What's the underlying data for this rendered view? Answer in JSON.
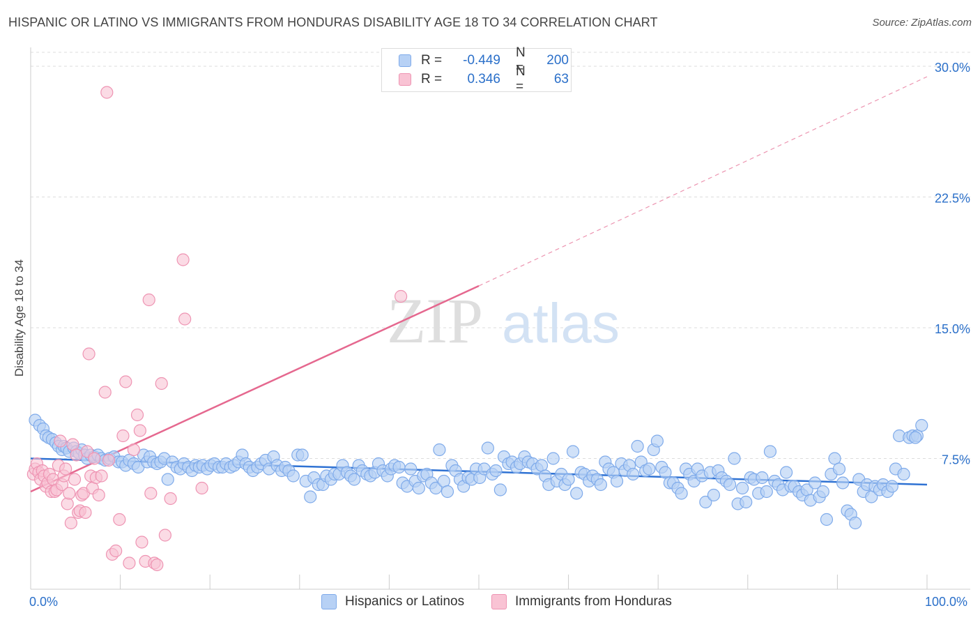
{
  "title": "HISPANIC OR LATINO VS IMMIGRANTS FROM HONDURAS DISABILITY AGE 18 TO 34 CORRELATION CHART",
  "source": "Source: ZipAtlas.com",
  "watermark": {
    "zip": "ZIP",
    "atlas": "atlas"
  },
  "legend": {
    "r_label": "R =",
    "n_label": "N =",
    "blue": {
      "r": "-0.449",
      "n": "200"
    },
    "pink": {
      "r": "0.346",
      "n": "63"
    }
  },
  "colors": {
    "blue_fill": "#b7d1f5",
    "blue_stroke": "#7eaaea",
    "blue_line": "#2f72d3",
    "pink_fill": "#f9c3d4",
    "pink_stroke": "#ee93b2",
    "pink_line": "#e5688f",
    "tick_label": "#2a6fc9",
    "grid": "#dddddd"
  },
  "chart_data": {
    "type": "scatter",
    "title": "HISPANIC OR LATINO VS IMMIGRANTS FROM HONDURAS DISABILITY AGE 18 TO 34 CORRELATION CHART",
    "xlabel": "",
    "ylabel": "Disability Age 18 to 34",
    "xlim": [
      0,
      100
    ],
    "ylim": [
      0,
      30.8
    ],
    "x_ticks": [
      0,
      10,
      20,
      30,
      40,
      50,
      60,
      70,
      80,
      90,
      100
    ],
    "x_tick_labels": {
      "min": "0.0%",
      "max": "100.0%"
    },
    "y_ticks": [
      7.5,
      15.0,
      22.5,
      30.0
    ],
    "y_tick_labels": [
      "7.5%",
      "15.0%",
      "22.5%",
      "30.0%"
    ],
    "grid": true,
    "legend_position": "top-center",
    "series": [
      {
        "name": "Hispanics or Latinos",
        "color": "#7eaaea",
        "trend": {
          "x0": 0,
          "y0": 7.5,
          "x1": 100,
          "y1": 6.0
        },
        "points": [
          [
            0.5,
            9.7
          ],
          [
            1.0,
            9.4
          ],
          [
            1.4,
            9.2
          ],
          [
            1.7,
            8.8
          ],
          [
            2.0,
            8.7
          ],
          [
            2.4,
            8.6
          ],
          [
            2.8,
            8.4
          ],
          [
            3.1,
            8.2
          ],
          [
            3.5,
            8.0
          ],
          [
            3.7,
            8.2
          ],
          [
            4.0,
            8.1
          ],
          [
            4.3,
            7.9
          ],
          [
            4.8,
            8.1
          ],
          [
            5.1,
            7.9
          ],
          [
            5.4,
            7.8
          ],
          [
            5.7,
            8.0
          ],
          [
            6.0,
            7.7
          ],
          [
            6.3,
            7.5
          ],
          [
            6.7,
            7.7
          ],
          [
            7.1,
            7.6
          ],
          [
            7.5,
            7.7
          ],
          [
            7.9,
            7.5
          ],
          [
            8.3,
            7.4
          ],
          [
            8.8,
            7.5
          ],
          [
            9.3,
            7.6
          ],
          [
            9.8,
            7.3
          ],
          [
            10.2,
            7.3
          ],
          [
            10.6,
            7.1
          ],
          [
            11.0,
            7.4
          ],
          [
            11.5,
            7.2
          ],
          [
            12.0,
            7.0
          ],
          [
            12.6,
            7.7
          ],
          [
            13.0,
            7.3
          ],
          [
            13.3,
            7.6
          ],
          [
            13.7,
            7.3
          ],
          [
            14.1,
            7.2
          ],
          [
            14.5,
            7.3
          ],
          [
            14.9,
            7.5
          ],
          [
            15.3,
            6.3
          ],
          [
            15.8,
            7.3
          ],
          [
            16.3,
            7.0
          ],
          [
            16.7,
            6.9
          ],
          [
            17.1,
            7.2
          ],
          [
            17.6,
            7.0
          ],
          [
            18.0,
            6.8
          ],
          [
            18.4,
            7.1
          ],
          [
            18.8,
            7.0
          ],
          [
            19.2,
            7.1
          ],
          [
            19.7,
            6.9
          ],
          [
            20.1,
            7.1
          ],
          [
            20.5,
            7.2
          ],
          [
            21.0,
            7.0
          ],
          [
            21.4,
            7.0
          ],
          [
            21.8,
            7.2
          ],
          [
            22.3,
            7.0
          ],
          [
            22.7,
            7.1
          ],
          [
            23.2,
            7.3
          ],
          [
            23.6,
            7.7
          ],
          [
            24.0,
            7.2
          ],
          [
            24.4,
            7.0
          ],
          [
            24.8,
            6.8
          ],
          [
            25.3,
            7.0
          ],
          [
            25.7,
            7.2
          ],
          [
            26.2,
            7.4
          ],
          [
            26.6,
            6.9
          ],
          [
            27.1,
            7.6
          ],
          [
            27.5,
            7.1
          ],
          [
            28.0,
            6.8
          ],
          [
            28.4,
            7.0
          ],
          [
            28.8,
            6.8
          ],
          [
            29.3,
            6.5
          ],
          [
            29.8,
            7.7
          ],
          [
            30.3,
            7.7
          ],
          [
            30.7,
            6.2
          ],
          [
            31.2,
            5.3
          ],
          [
            31.6,
            6.4
          ],
          [
            32.1,
            6.0
          ],
          [
            32.6,
            6.0
          ],
          [
            33.0,
            6.5
          ],
          [
            33.5,
            6.3
          ],
          [
            33.9,
            6.6
          ],
          [
            34.4,
            6.6
          ],
          [
            34.8,
            7.1
          ],
          [
            35.3,
            6.7
          ],
          [
            35.7,
            6.5
          ],
          [
            36.1,
            6.3
          ],
          [
            36.6,
            7.1
          ],
          [
            37.0,
            6.8
          ],
          [
            37.5,
            6.6
          ],
          [
            37.9,
            6.5
          ],
          [
            38.4,
            6.7
          ],
          [
            38.8,
            7.2
          ],
          [
            39.3,
            6.8
          ],
          [
            39.8,
            6.5
          ],
          [
            40.2,
            6.9
          ],
          [
            40.6,
            7.1
          ],
          [
            41.1,
            7.0
          ],
          [
            41.5,
            6.1
          ],
          [
            42.0,
            5.9
          ],
          [
            42.4,
            6.9
          ],
          [
            42.9,
            6.2
          ],
          [
            43.3,
            5.8
          ],
          [
            43.8,
            6.5
          ],
          [
            44.2,
            6.6
          ],
          [
            44.7,
            6.1
          ],
          [
            45.2,
            5.8
          ],
          [
            45.6,
            8.0
          ],
          [
            46.1,
            6.2
          ],
          [
            46.5,
            5.6
          ],
          [
            47.0,
            7.1
          ],
          [
            47.4,
            6.8
          ],
          [
            47.9,
            6.3
          ],
          [
            48.3,
            5.9
          ],
          [
            48.8,
            6.4
          ],
          [
            49.2,
            6.3
          ],
          [
            49.7,
            6.9
          ],
          [
            50.1,
            6.4
          ],
          [
            50.6,
            6.9
          ],
          [
            51.0,
            8.1
          ],
          [
            51.5,
            6.6
          ],
          [
            51.9,
            6.8
          ],
          [
            52.4,
            5.7
          ],
          [
            52.8,
            7.6
          ],
          [
            53.3,
            7.2
          ],
          [
            53.7,
            7.3
          ],
          [
            54.2,
            7.0
          ],
          [
            54.6,
            7.2
          ],
          [
            55.1,
            7.6
          ],
          [
            55.5,
            7.3
          ],
          [
            56.0,
            7.2
          ],
          [
            56.5,
            6.9
          ],
          [
            57.0,
            7.1
          ],
          [
            57.4,
            6.5
          ],
          [
            57.8,
            6.0
          ],
          [
            58.3,
            7.5
          ],
          [
            58.7,
            6.2
          ],
          [
            59.2,
            6.6
          ],
          [
            59.6,
            6.0
          ],
          [
            60.0,
            6.3
          ],
          [
            60.5,
            7.9
          ],
          [
            60.9,
            5.5
          ],
          [
            61.4,
            6.7
          ],
          [
            61.8,
            6.6
          ],
          [
            62.3,
            6.2
          ],
          [
            62.7,
            6.5
          ],
          [
            63.2,
            6.3
          ],
          [
            63.6,
            6.0
          ],
          [
            64.1,
            7.3
          ],
          [
            64.5,
            6.9
          ],
          [
            65.0,
            6.7
          ],
          [
            65.4,
            6.2
          ],
          [
            65.9,
            7.2
          ],
          [
            66.3,
            6.8
          ],
          [
            66.8,
            7.1
          ],
          [
            67.2,
            6.6
          ],
          [
            67.7,
            8.2
          ],
          [
            68.1,
            7.3
          ],
          [
            68.6,
            6.8
          ],
          [
            69.0,
            6.9
          ],
          [
            69.5,
            8.0
          ],
          [
            69.9,
            8.5
          ],
          [
            70.4,
            7.0
          ],
          [
            70.8,
            6.7
          ],
          [
            71.3,
            6.1
          ],
          [
            71.7,
            6.1
          ],
          [
            72.2,
            5.8
          ],
          [
            72.6,
            5.5
          ],
          [
            73.1,
            6.9
          ],
          [
            73.5,
            6.6
          ],
          [
            74.0,
            6.2
          ],
          [
            74.4,
            6.9
          ],
          [
            74.9,
            6.5
          ],
          [
            75.3,
            5.0
          ],
          [
            75.8,
            6.7
          ],
          [
            76.2,
            5.4
          ],
          [
            76.7,
            6.8
          ],
          [
            77.1,
            6.4
          ],
          [
            77.6,
            6.2
          ],
          [
            78.0,
            6.0
          ],
          [
            78.5,
            7.5
          ],
          [
            78.9,
            4.9
          ],
          [
            79.4,
            5.8
          ],
          [
            79.8,
            5.0
          ],
          [
            80.3,
            6.4
          ],
          [
            80.7,
            6.3
          ],
          [
            81.2,
            5.5
          ],
          [
            81.6,
            6.4
          ],
          [
            82.1,
            5.6
          ],
          [
            82.5,
            7.9
          ],
          [
            83.0,
            6.2
          ],
          [
            83.4,
            6.0
          ],
          [
            83.9,
            5.7
          ],
          [
            84.3,
            6.7
          ],
          [
            84.8,
            5.9
          ],
          [
            85.2,
            5.9
          ],
          [
            85.7,
            5.6
          ],
          [
            86.1,
            5.4
          ],
          [
            86.6,
            5.7
          ],
          [
            87.0,
            5.1
          ],
          [
            87.5,
            6.1
          ],
          [
            88.0,
            5.3
          ],
          [
            88.4,
            5.6
          ],
          [
            88.8,
            4.0
          ],
          [
            89.3,
            6.6
          ],
          [
            89.7,
            7.5
          ],
          [
            90.2,
            6.9
          ],
          [
            90.6,
            6.1
          ],
          [
            91.1,
            4.5
          ],
          [
            91.5,
            4.3
          ],
          [
            92.0,
            3.8
          ],
          [
            92.4,
            6.3
          ],
          [
            92.9,
            5.6
          ],
          [
            93.3,
            6.0
          ],
          [
            93.8,
            5.3
          ],
          [
            94.2,
            5.9
          ],
          [
            94.7,
            5.7
          ],
          [
            95.1,
            6.0
          ],
          [
            95.6,
            5.6
          ],
          [
            96.1,
            5.9
          ],
          [
            96.5,
            6.9
          ],
          [
            96.9,
            8.8
          ],
          [
            97.4,
            6.6
          ],
          [
            98.0,
            8.7
          ],
          [
            98.4,
            8.8
          ],
          [
            98.9,
            8.8
          ],
          [
            99.4,
            9.4
          ],
          [
            98.7,
            8.7
          ]
        ]
      },
      {
        "name": "Immigrants from Honduras",
        "color": "#ee93b2",
        "trend": {
          "x0": 0,
          "y0": 5.6,
          "x1": 50,
          "y1": 17.4
        },
        "trend_extension": {
          "x0": 50,
          "y0": 17.4,
          "x1": 100,
          "y1": 29.4
        },
        "points": [
          [
            0.3,
            6.6
          ],
          [
            0.5,
            6.9
          ],
          [
            0.7,
            7.2
          ],
          [
            0.9,
            6.7
          ],
          [
            1.1,
            6.3
          ],
          [
            1.3,
            6.8
          ],
          [
            1.5,
            6.5
          ],
          [
            1.7,
            5.9
          ],
          [
            1.9,
            6.1
          ],
          [
            2.1,
            6.6
          ],
          [
            2.3,
            5.6
          ],
          [
            2.5,
            6.3
          ],
          [
            2.7,
            5.6
          ],
          [
            2.9,
            5.7
          ],
          [
            3.1,
            7.1
          ],
          [
            3.3,
            8.5
          ],
          [
            3.5,
            6.0
          ],
          [
            3.7,
            6.5
          ],
          [
            3.9,
            6.9
          ],
          [
            4.1,
            4.9
          ],
          [
            4.3,
            5.5
          ],
          [
            4.5,
            3.8
          ],
          [
            4.7,
            8.3
          ],
          [
            4.9,
            6.3
          ],
          [
            5.1,
            7.7
          ],
          [
            5.3,
            4.4
          ],
          [
            5.5,
            4.5
          ],
          [
            5.7,
            5.4
          ],
          [
            5.9,
            5.5
          ],
          [
            6.1,
            4.4
          ],
          [
            6.3,
            7.9
          ],
          [
            6.5,
            13.5
          ],
          [
            6.7,
            6.5
          ],
          [
            6.9,
            5.8
          ],
          [
            7.1,
            7.5
          ],
          [
            7.3,
            6.4
          ],
          [
            7.6,
            5.4
          ],
          [
            7.9,
            6.5
          ],
          [
            8.3,
            11.3
          ],
          [
            8.7,
            7.4
          ],
          [
            9.1,
            2.0
          ],
          [
            9.5,
            2.2
          ],
          [
            9.9,
            4.0
          ],
          [
            10.3,
            8.8
          ],
          [
            10.6,
            11.9
          ],
          [
            11.0,
            1.5
          ],
          [
            11.5,
            8.0
          ],
          [
            11.9,
            10.0
          ],
          [
            12.2,
            9.1
          ],
          [
            12.4,
            2.7
          ],
          [
            12.8,
            1.6
          ],
          [
            13.2,
            16.6
          ],
          [
            13.4,
            5.5
          ],
          [
            13.8,
            1.5
          ],
          [
            14.1,
            1.4
          ],
          [
            14.6,
            11.8
          ],
          [
            15.0,
            3.1
          ],
          [
            15.6,
            5.2
          ],
          [
            17.0,
            18.9
          ],
          [
            17.2,
            15.5
          ],
          [
            19.1,
            5.8
          ],
          [
            41.3,
            16.8
          ],
          [
            8.5,
            28.5
          ]
        ]
      }
    ]
  }
}
